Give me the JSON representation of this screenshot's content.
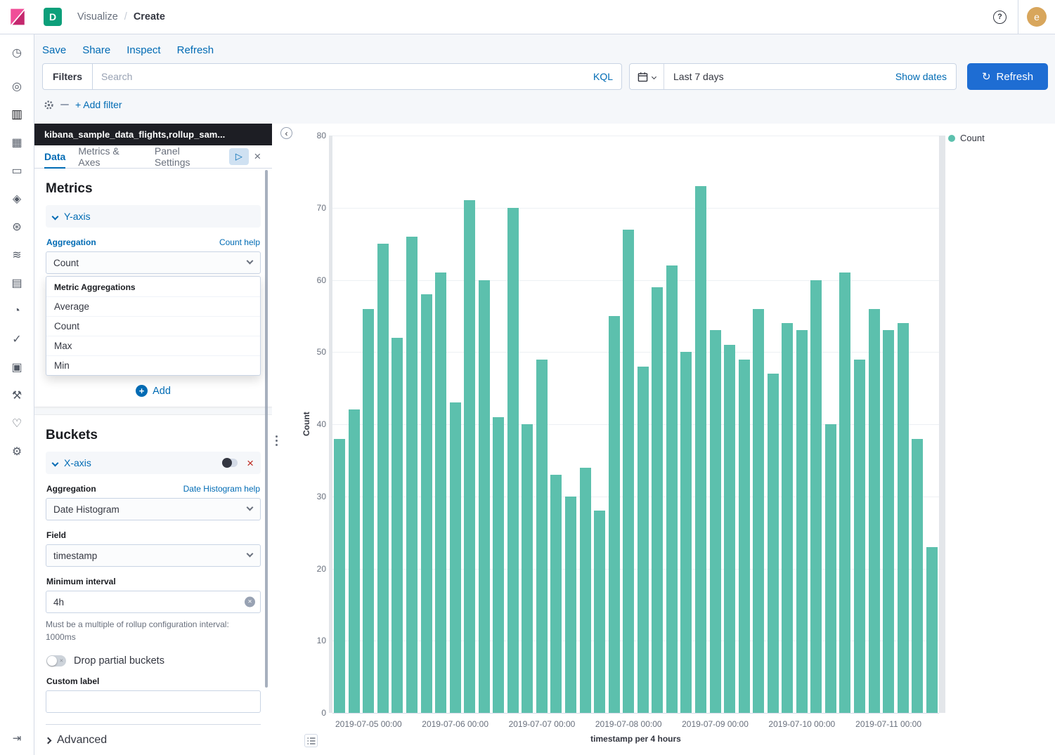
{
  "colors": {
    "accent_blue": "#006BB4",
    "button_blue": "#1E6DD3",
    "bar_teal": "#5CC0AD",
    "danger_red": "#BD271E",
    "panel_header_dark": "#1D1E24",
    "space_badge_teal": "#0C9F7A",
    "logo_pink": "#F04E98",
    "avatar_tan": "#D8A65C"
  },
  "icons": {
    "play": "▷",
    "close": "×",
    "remove_x": "×",
    "clear": "×",
    "switch_x": "×",
    "plus": "+",
    "refresh": "↻",
    "collapse_left": "‹",
    "help_q": "?"
  },
  "topbar": {
    "space_badge": "D",
    "breadcrumb": {
      "section": "Visualize",
      "separator": "/",
      "page": "Create"
    },
    "avatar_initial": "e"
  },
  "nav_links": {
    "save": "Save",
    "share": "Share",
    "inspect": "Inspect",
    "refresh": "Refresh"
  },
  "query_bar": {
    "filters_label": "Filters",
    "search_placeholder": "Search",
    "kql_label": "KQL",
    "date_range": "Last 7 days",
    "show_dates_label": "Show dates",
    "refresh_button": "Refresh",
    "add_filter_label": "+ Add filter"
  },
  "rail": {
    "items": [
      {
        "name": "recently-viewed",
        "glyph": "◷",
        "active": false
      },
      {
        "name": "discover",
        "glyph": "◎",
        "active": false
      },
      {
        "name": "visualize",
        "glyph": "▥",
        "active": true
      },
      {
        "name": "dashboard",
        "glyph": "▦",
        "active": false
      },
      {
        "name": "canvas",
        "glyph": "▭",
        "active": false
      },
      {
        "name": "maps",
        "glyph": "◈",
        "active": false
      },
      {
        "name": "machine-learning",
        "glyph": "⊛",
        "active": false
      },
      {
        "name": "metrics",
        "glyph": "≋",
        "active": false
      },
      {
        "name": "logs",
        "glyph": "▤",
        "active": false
      },
      {
        "name": "apm",
        "glyph": "◔",
        "active": false
      },
      {
        "name": "uptime",
        "glyph": "✓",
        "active": false
      },
      {
        "name": "siem",
        "glyph": "▣",
        "active": false
      },
      {
        "name": "dev-tools",
        "glyph": "⚒",
        "active": false
      },
      {
        "name": "stack-monitoring",
        "glyph": "♡",
        "active": false
      },
      {
        "name": "management",
        "glyph": "⚙",
        "active": false
      }
    ],
    "collapse_glyph": "⇥"
  },
  "editor": {
    "index_title": "kibana_sample_data_flights,rollup_sam...",
    "tabs": [
      {
        "label": "Data",
        "active": true
      },
      {
        "label": "Metrics & Axes",
        "active": false
      },
      {
        "label": "Panel Settings",
        "active": false
      }
    ],
    "metrics": {
      "heading": "Metrics",
      "axis_label": "Y-axis",
      "aggregation_label": "Aggregation",
      "help_link": "Count help",
      "aggregation_value": "Count",
      "dropdown": {
        "header": "Metric Aggregations",
        "options": [
          "Average",
          "Count",
          "Max",
          "Min"
        ]
      },
      "add_button": "Add"
    },
    "buckets": {
      "heading": "Buckets",
      "axis_label": "X-axis",
      "aggregation_label": "Aggregation",
      "help_link": "Date Histogram help",
      "aggregation_value": "Date Histogram",
      "field_label": "Field",
      "field_value": "timestamp",
      "min_interval_label": "Minimum interval",
      "min_interval_value": "4h",
      "min_interval_help": "Must be a multiple of rollup configuration interval: 1000ms",
      "drop_partial_label": "Drop partial buckets",
      "custom_label_label": "Custom label",
      "custom_label_value": "",
      "advanced_label": "Advanced"
    }
  },
  "chart_data": {
    "type": "bar",
    "title": "",
    "xlabel": "timestamp per 4 hours",
    "ylabel": "Count",
    "ylim": [
      0,
      80
    ],
    "y_ticks": [
      0,
      10,
      20,
      30,
      40,
      50,
      60,
      70,
      80
    ],
    "grid": true,
    "legend_position": "top-right",
    "series": [
      {
        "name": "Count",
        "color": "#5CC0AD"
      }
    ],
    "x": [
      "2019-07-04 16:00",
      "2019-07-04 20:00",
      "2019-07-05 00:00",
      "2019-07-05 04:00",
      "2019-07-05 08:00",
      "2019-07-05 12:00",
      "2019-07-05 16:00",
      "2019-07-05 20:00",
      "2019-07-06 00:00",
      "2019-07-06 04:00",
      "2019-07-06 08:00",
      "2019-07-06 12:00",
      "2019-07-06 16:00",
      "2019-07-06 20:00",
      "2019-07-07 00:00",
      "2019-07-07 04:00",
      "2019-07-07 08:00",
      "2019-07-07 12:00",
      "2019-07-07 16:00",
      "2019-07-07 20:00",
      "2019-07-08 00:00",
      "2019-07-08 04:00",
      "2019-07-08 08:00",
      "2019-07-08 12:00",
      "2019-07-08 16:00",
      "2019-07-08 20:00",
      "2019-07-09 00:00",
      "2019-07-09 04:00",
      "2019-07-09 08:00",
      "2019-07-09 12:00",
      "2019-07-09 16:00",
      "2019-07-09 20:00",
      "2019-07-10 00:00",
      "2019-07-10 04:00",
      "2019-07-10 08:00",
      "2019-07-10 12:00",
      "2019-07-10 16:00",
      "2019-07-10 20:00",
      "2019-07-11 00:00",
      "2019-07-11 04:00",
      "2019-07-11 08:00",
      "2019-07-11 12:00"
    ],
    "values": [
      38,
      42,
      56,
      65,
      52,
      66,
      58,
      61,
      43,
      71,
      60,
      41,
      70,
      40,
      49,
      33,
      30,
      34,
      28,
      55,
      67,
      48,
      59,
      62,
      50,
      73,
      53,
      51,
      49,
      56,
      47,
      54,
      53,
      60,
      40,
      61,
      49,
      56,
      53,
      54,
      38,
      23
    ]
  }
}
